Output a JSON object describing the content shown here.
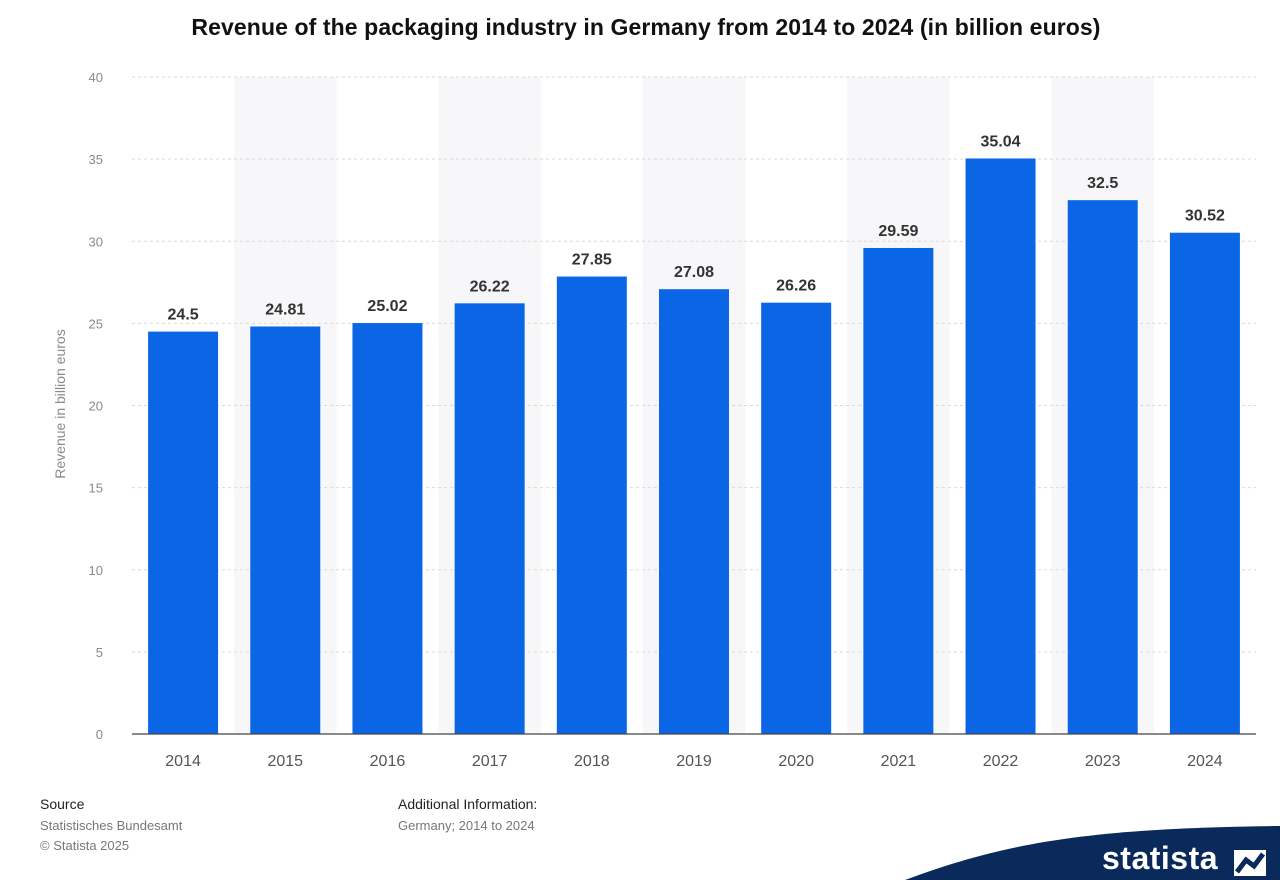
{
  "chart_data": {
    "type": "bar",
    "title": "Revenue of the packaging industry in Germany from 2014 to 2024 (in billion euros)",
    "xlabel": "",
    "ylabel": "Revenue in billion euros",
    "categories": [
      "2014",
      "2015",
      "2016",
      "2017",
      "2018",
      "2019",
      "2020",
      "2021",
      "2022",
      "2023",
      "2024"
    ],
    "values": [
      24.5,
      24.81,
      25.02,
      26.22,
      27.85,
      27.08,
      26.26,
      29.59,
      35.04,
      32.5,
      30.52
    ],
    "value_labels": [
      "24.5",
      "24.81",
      "25.02",
      "26.22",
      "27.85",
      "27.08",
      "26.26",
      "29.59",
      "35.04",
      "32.5",
      "30.52"
    ],
    "ylim": [
      0,
      40
    ],
    "yticks": [
      0,
      5,
      10,
      15,
      20,
      25,
      30,
      35,
      40
    ],
    "grid": "horizontal-dashed",
    "bar_color": "#0a66e4"
  },
  "footer": {
    "source_heading": "Source",
    "source_name": "Statistisches Bundesamt",
    "copyright": "© Statista 2025",
    "additional_info_heading": "Additional Information:",
    "additional_info_text": "Germany; 2014 to 2024"
  },
  "brand": {
    "name": "statista",
    "icon": "statista-logo-icon",
    "color": "#0b2a5c"
  }
}
